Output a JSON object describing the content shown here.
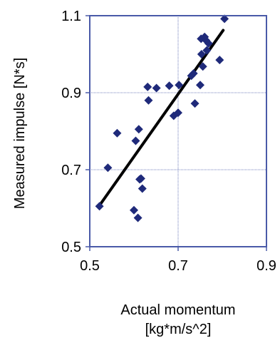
{
  "chart_data": {
    "type": "scatter",
    "xlabel": [
      "Actual momentum",
      "[kg*m/s^2]"
    ],
    "ylabel": "Measured impulse [N*s]",
    "xlim": [
      0.5,
      0.9
    ],
    "ylim": [
      0.5,
      1.1
    ],
    "x_ticks": [
      "0.5",
      "0.7",
      "0.9"
    ],
    "y_ticks": [
      "0.5",
      "0.7",
      "0.9",
      "1.1"
    ],
    "grid": true,
    "frame_color": "#4a5aa8",
    "grid_color": "#4a5aa8",
    "marker_color": "#1f2a7a",
    "marker": "diamond",
    "series": [
      {
        "points": [
          [
            0.522,
            0.605
          ],
          [
            0.541,
            0.705
          ],
          [
            0.562,
            0.795
          ],
          [
            0.6,
            0.595
          ],
          [
            0.604,
            0.775
          ],
          [
            0.609,
            0.575
          ],
          [
            0.611,
            0.805
          ],
          [
            0.613,
            0.675
          ],
          [
            0.616,
            0.677
          ],
          [
            0.619,
            0.651
          ],
          [
            0.631,
            0.915
          ],
          [
            0.633,
            0.88
          ],
          [
            0.651,
            0.912
          ],
          [
            0.68,
            0.918
          ],
          [
            0.69,
            0.84
          ],
          [
            0.7,
            0.848
          ],
          [
            0.702,
            0.92
          ],
          [
            0.73,
            0.944
          ],
          [
            0.735,
            0.95
          ],
          [
            0.738,
            0.872
          ],
          [
            0.75,
            0.92
          ],
          [
            0.752,
            1.04
          ],
          [
            0.753,
            1.0
          ],
          [
            0.756,
            0.968
          ],
          [
            0.76,
            1.045
          ],
          [
            0.763,
            1.036
          ],
          [
            0.765,
            1.01
          ],
          [
            0.769,
            1.028
          ],
          [
            0.794,
            0.985
          ],
          [
            0.805,
            1.092
          ]
        ]
      }
    ],
    "trendline": {
      "color": "#000000",
      "x": [
        0.525,
        0.802
      ],
      "y": [
        0.612,
        1.062
      ]
    }
  }
}
